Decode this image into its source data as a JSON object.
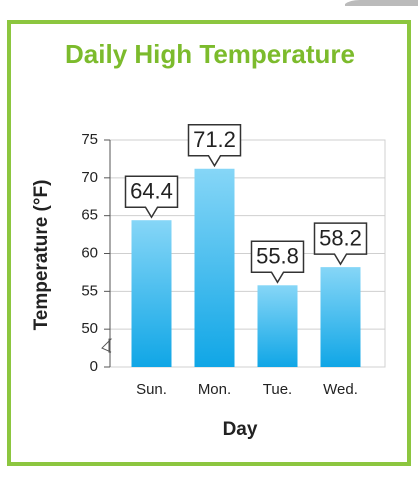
{
  "chart_data": {
    "type": "bar",
    "title": "Daily High Temperature",
    "x_label": "Day",
    "y_label": "Temperature (°F)",
    "categories": [
      "Sun.",
      "Mon.",
      "Tue.",
      "Wed."
    ],
    "values": [
      64.4,
      71.2,
      55.8,
      58.2
    ],
    "color": "#1aaee9",
    "ylim": [
      0,
      75
    ],
    "yticks": [
      0,
      50,
      55,
      60,
      65,
      70,
      75
    ],
    "axis_break": true,
    "grid": true
  }
}
